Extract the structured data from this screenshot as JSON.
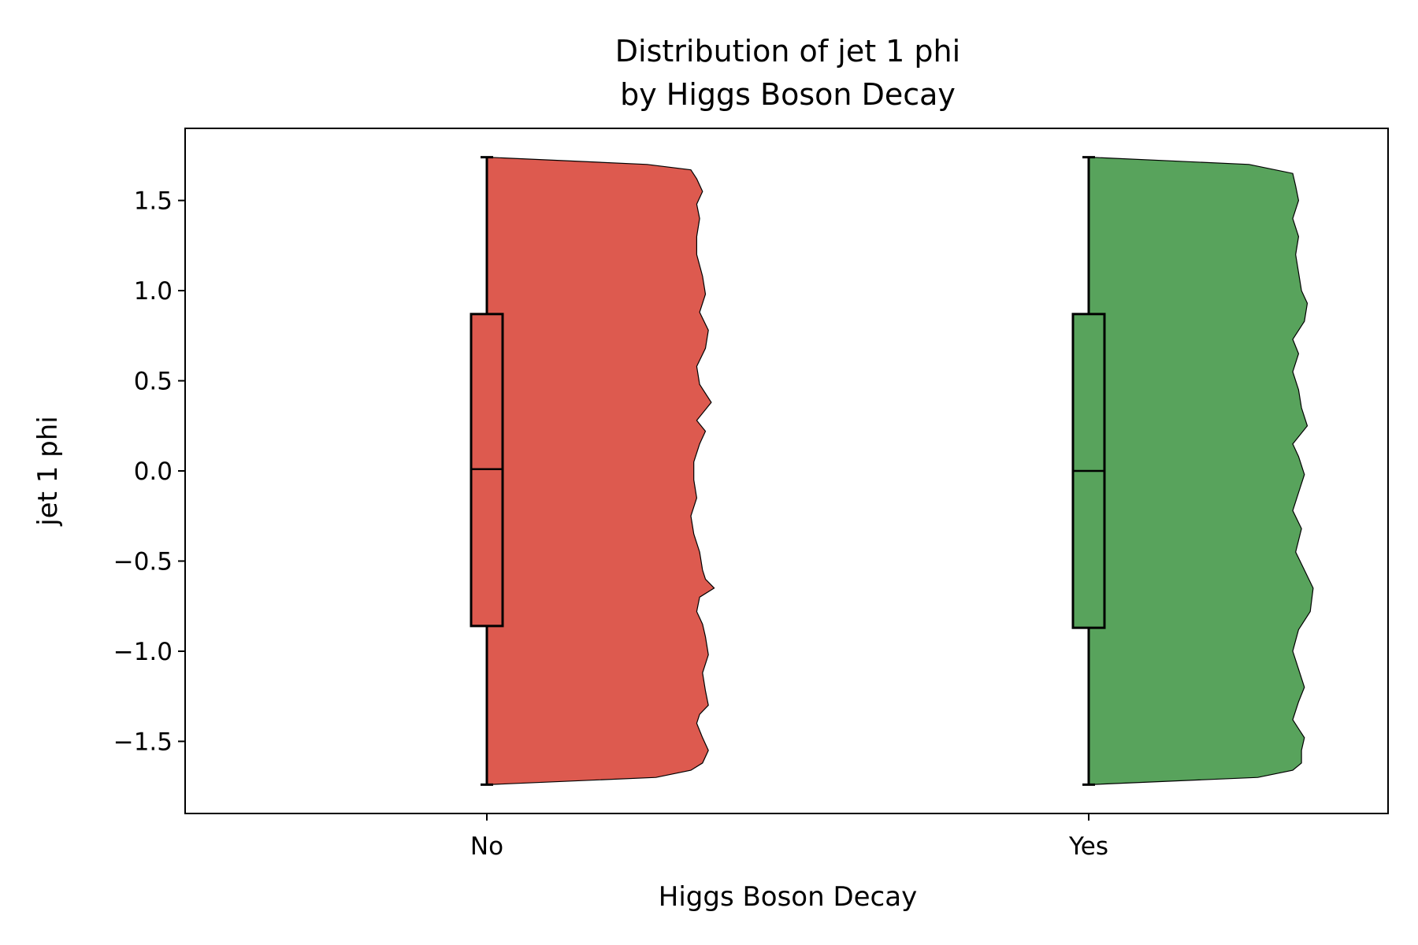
{
  "colors": {
    "no": "#dd5a4f",
    "yes": "#58a35c",
    "outline": "#000000"
  },
  "chart_data": {
    "type": "half-violin-box",
    "title_line1": "Distribution of jet 1 phi",
    "title_line2": "by Higgs Boson Decay",
    "xlabel": "Higgs Boson Decay",
    "ylabel": "jet 1 phi",
    "categories": [
      "No",
      "Yes"
    ],
    "ylim": [
      -1.9,
      1.9
    ],
    "yticks": [
      -1.5,
      -1.0,
      -0.5,
      0.0,
      0.5,
      1.0,
      1.5
    ],
    "ytick_labels": [
      "−1.5",
      "−1.0",
      "−0.5",
      "0.0",
      "0.5",
      "1.0",
      "1.5"
    ],
    "grid": false,
    "series": [
      {
        "category": "No",
        "color": "#dd5a4f",
        "box": {
          "whisker_low": -1.74,
          "q1": -0.86,
          "median": 0.01,
          "q3": 0.87,
          "whisker_high": 1.74
        },
        "density": {
          "y": [
            -1.74,
            -1.7,
            -1.66,
            -1.62,
            -1.55,
            -1.48,
            -1.4,
            -1.35,
            -1.3,
            -1.22,
            -1.12,
            -1.02,
            -0.92,
            -0.85,
            -0.78,
            -0.7,
            -0.65,
            -0.6,
            -0.55,
            -0.45,
            -0.35,
            -0.25,
            -0.15,
            -0.05,
            0.05,
            0.15,
            0.22,
            0.28,
            0.38,
            0.48,
            0.58,
            0.68,
            0.78,
            0.88,
            0.98,
            1.08,
            1.2,
            1.3,
            1.4,
            1.48,
            1.55,
            1.62,
            1.67,
            1.7,
            1.74
          ],
          "w": [
            0.0,
            0.58,
            0.7,
            0.74,
            0.76,
            0.74,
            0.72,
            0.73,
            0.76,
            0.75,
            0.74,
            0.76,
            0.75,
            0.74,
            0.72,
            0.73,
            0.78,
            0.75,
            0.74,
            0.73,
            0.71,
            0.7,
            0.72,
            0.71,
            0.71,
            0.73,
            0.75,
            0.72,
            0.77,
            0.73,
            0.72,
            0.75,
            0.76,
            0.73,
            0.75,
            0.74,
            0.72,
            0.72,
            0.73,
            0.72,
            0.74,
            0.72,
            0.7,
            0.55,
            0.0
          ]
        }
      },
      {
        "category": "Yes",
        "color": "#58a35c",
        "box": {
          "whisker_low": -1.74,
          "q1": -0.87,
          "median": 0.0,
          "q3": 0.87,
          "whisker_high": 1.74
        },
        "density": {
          "y": [
            -1.74,
            -1.7,
            -1.66,
            -1.62,
            -1.55,
            -1.48,
            -1.38,
            -1.28,
            -1.2,
            -1.1,
            -1.0,
            -0.88,
            -0.78,
            -0.65,
            -0.55,
            -0.45,
            -0.32,
            -0.22,
            -0.12,
            -0.02,
            0.08,
            0.15,
            0.25,
            0.35,
            0.45,
            0.55,
            0.65,
            0.73,
            0.83,
            0.93,
            1.0,
            1.1,
            1.2,
            1.3,
            1.4,
            1.5,
            1.58,
            1.65,
            1.7,
            1.74
          ],
          "w": [
            0.0,
            0.58,
            0.7,
            0.73,
            0.73,
            0.74,
            0.7,
            0.72,
            0.74,
            0.72,
            0.7,
            0.72,
            0.76,
            0.77,
            0.74,
            0.71,
            0.73,
            0.7,
            0.72,
            0.74,
            0.72,
            0.7,
            0.75,
            0.73,
            0.72,
            0.7,
            0.72,
            0.7,
            0.74,
            0.75,
            0.73,
            0.72,
            0.71,
            0.72,
            0.7,
            0.72,
            0.71,
            0.7,
            0.55,
            0.0
          ]
        }
      }
    ]
  }
}
